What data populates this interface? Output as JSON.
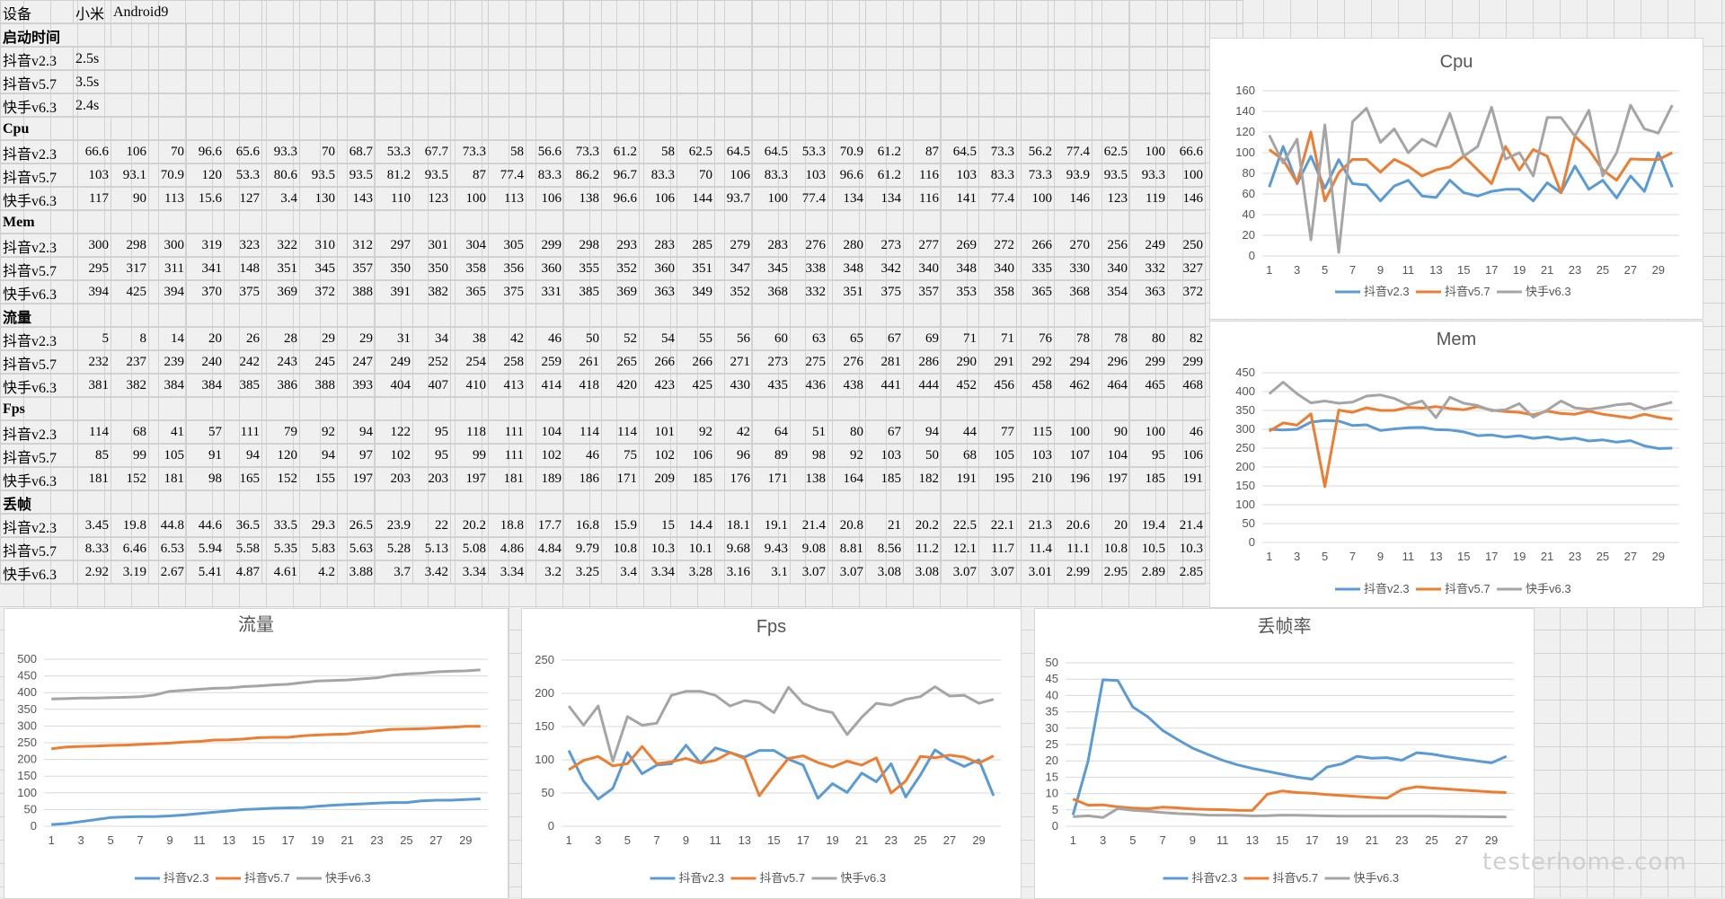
{
  "sheet": {
    "device_label": "设备",
    "device_brand": "小米",
    "device_os": "Android9",
    "startup": {
      "title": "启动时间",
      "rows": [
        {
          "label": "抖音v2.3",
          "value": "2.5s"
        },
        {
          "label": "抖音v5.7",
          "value": "3.5s"
        },
        {
          "label": "快手v6.3",
          "value": "2.4s"
        }
      ]
    },
    "sections": [
      {
        "title": "Cpu",
        "rows": [
          {
            "label": "抖音v2.3",
            "values": [
              "66.6",
              "106",
              "70",
              "96.6",
              "65.6",
              "93.3",
              "70",
              "68.7",
              "53.3",
              "67.7",
              "73.3",
              "58",
              "56.6",
              "73.3",
              "61.2",
              "58",
              "62.5",
              "64.5",
              "64.5",
              "53.3",
              "70.9",
              "61.2",
              "87",
              "64.5",
              "73.3",
              "56.2",
              "77.4",
              "62.5",
              "100",
              "66.6"
            ]
          },
          {
            "label": "抖音v5.7",
            "values": [
              "103",
              "93.1",
              "70.9",
              "120",
              "53.3",
              "80.6",
              "93.5",
              "93.5",
              "81.2",
              "93.5",
              "87",
              "77.4",
              "83.3",
              "86.2",
              "96.7",
              "83.3",
              "70",
              "106",
              "83.3",
              "103",
              "96.6",
              "61.2",
              "116",
              "103",
              "83.3",
              "73.3",
              "93.9",
              "93.5",
              "93.3",
              "100"
            ]
          },
          {
            "label": "快手v6.3",
            "values": [
              "117",
              "90",
              "113",
              "15.6",
              "127",
              "3.4",
              "130",
              "143",
              "110",
              "123",
              "100",
              "113",
              "106",
              "138",
              "96.6",
              "106",
              "144",
              "93.7",
              "100",
              "77.4",
              "134",
              "134",
              "116",
              "141",
              "77.4",
              "100",
              "146",
              "123",
              "119",
              "146"
            ]
          }
        ]
      },
      {
        "title": "Mem",
        "rows": [
          {
            "label": "抖音v2.3",
            "values": [
              "300",
              "298",
              "300",
              "319",
              "323",
              "322",
              "310",
              "312",
              "297",
              "301",
              "304",
              "305",
              "299",
              "298",
              "293",
              "283",
              "285",
              "279",
              "283",
              "276",
              "280",
              "273",
              "277",
              "269",
              "272",
              "266",
              "270",
              "256",
              "249",
              "250"
            ]
          },
          {
            "label": "抖音v5.7",
            "values": [
              "295",
              "317",
              "311",
              "341",
              "148",
              "351",
              "345",
              "357",
              "350",
              "350",
              "358",
              "356",
              "360",
              "355",
              "352",
              "360",
              "351",
              "347",
              "345",
              "338",
              "348",
              "342",
              "340",
              "348",
              "340",
              "335",
              "330",
              "340",
              "332",
              "327"
            ]
          },
          {
            "label": "快手v6.3",
            "values": [
              "394",
              "425",
              "394",
              "370",
              "375",
              "369",
              "372",
              "388",
              "391",
              "382",
              "365",
              "375",
              "331",
              "385",
              "369",
              "363",
              "349",
              "352",
              "368",
              "332",
              "351",
              "375",
              "357",
              "353",
              "358",
              "365",
              "368",
              "354",
              "363",
              "372"
            ]
          }
        ]
      },
      {
        "title": "流量",
        "rows": [
          {
            "label": "抖音v2.3",
            "values": [
              "5",
              "8",
              "14",
              "20",
              "26",
              "28",
              "29",
              "29",
              "31",
              "34",
              "38",
              "42",
              "46",
              "50",
              "52",
              "54",
              "55",
              "56",
              "60",
              "63",
              "65",
              "67",
              "69",
              "71",
              "71",
              "76",
              "78",
              "78",
              "80",
              "82"
            ]
          },
          {
            "label": "抖音v5.7",
            "values": [
              "232",
              "237",
              "239",
              "240",
              "242",
              "243",
              "245",
              "247",
              "249",
              "252",
              "254",
              "258",
              "259",
              "261",
              "265",
              "266",
              "266",
              "271",
              "273",
              "275",
              "276",
              "281",
              "286",
              "290",
              "291",
              "292",
              "294",
              "296",
              "299",
              "299"
            ]
          },
          {
            "label": "快手v6.3",
            "values": [
              "381",
              "382",
              "384",
              "384",
              "385",
              "386",
              "388",
              "393",
              "404",
              "407",
              "410",
              "413",
              "414",
              "418",
              "420",
              "423",
              "425",
              "430",
              "435",
              "436",
              "438",
              "441",
              "444",
              "452",
              "456",
              "458",
              "462",
              "464",
              "465",
              "468"
            ]
          }
        ]
      },
      {
        "title": "Fps",
        "rows": [
          {
            "label": "抖音v2.3",
            "values": [
              "114",
              "68",
              "41",
              "57",
              "111",
              "79",
              "92",
              "94",
              "122",
              "95",
              "118",
              "111",
              "104",
              "114",
              "114",
              "101",
              "92",
              "42",
              "64",
              "51",
              "80",
              "67",
              "94",
              "44",
              "77",
              "115",
              "100",
              "90",
              "100",
              "46"
            ]
          },
          {
            "label": "抖音v5.7",
            "values": [
              "85",
              "99",
              "105",
              "91",
              "94",
              "120",
              "94",
              "97",
              "102",
              "95",
              "99",
              "111",
              "102",
              "46",
              "75",
              "102",
              "106",
              "96",
              "89",
              "98",
              "92",
              "103",
              "50",
              "68",
              "105",
              "103",
              "107",
              "104",
              "95",
              "106"
            ]
          },
          {
            "label": "快手v6.3",
            "values": [
              "181",
              "152",
              "181",
              "98",
              "165",
              "152",
              "155",
              "197",
              "203",
              "203",
              "197",
              "181",
              "189",
              "186",
              "171",
              "209",
              "185",
              "176",
              "171",
              "138",
              "164",
              "185",
              "182",
              "191",
              "195",
              "210",
              "196",
              "197",
              "185",
              "191"
            ]
          }
        ]
      },
      {
        "title": "丢帧",
        "rows": [
          {
            "label": "抖音v2.3",
            "values": [
              "3.45",
              "19.8",
              "44.8",
              "44.6",
              "36.5",
              "33.5",
              "29.3",
              "26.5",
              "23.9",
              "22",
              "20.2",
              "18.8",
              "17.7",
              "16.8",
              "15.9",
              "15",
              "14.4",
              "18.1",
              "19.1",
              "21.4",
              "20.8",
              "21",
              "20.2",
              "22.5",
              "22.1",
              "21.3",
              "20.6",
              "20",
              "19.4",
              "21.4"
            ]
          },
          {
            "label": "抖音v5.7",
            "values": [
              "8.33",
              "6.46",
              "6.53",
              "5.94",
              "5.58",
              "5.35",
              "5.83",
              "5.63",
              "5.28",
              "5.13",
              "5.08",
              "4.86",
              "4.84",
              "9.79",
              "10.8",
              "10.3",
              "10.1",
              "9.68",
              "9.43",
              "9.08",
              "8.81",
              "8.56",
              "11.2",
              "12.1",
              "11.7",
              "11.4",
              "11.1",
              "10.8",
              "10.5",
              "10.3"
            ]
          },
          {
            "label": "快手v6.3",
            "values": [
              "2.92",
              "3.19",
              "2.67",
              "5.41",
              "4.87",
              "4.61",
              "4.2",
              "3.88",
              "3.7",
              "3.42",
              "3.34",
              "3.34",
              "3.2",
              "3.25",
              "3.4",
              "3.34",
              "3.28",
              "3.16",
              "3.1",
              "3.07",
              "3.07",
              "3.08",
              "3.08",
              "3.07",
              "3.07",
              "3.01",
              "2.99",
              "2.95",
              "2.89",
              "2.85"
            ]
          }
        ]
      }
    ]
  },
  "colors": {
    "s1": "#5b9bd5",
    "s2": "#ed7d31",
    "s3": "#a5a5a5"
  },
  "chart_data": [
    {
      "type": "line",
      "title": "Cpu",
      "source": 0,
      "ylim": [
        0,
        160
      ],
      "yticks": [
        0,
        20,
        40,
        60,
        80,
        100,
        120,
        140,
        160
      ],
      "xticks": [
        "1",
        "3",
        "5",
        "7",
        "9",
        "11",
        "13",
        "15",
        "17",
        "19",
        "21",
        "23",
        "25",
        "27",
        "29"
      ],
      "series": [
        {
          "name": "抖音v2.3"
        },
        {
          "name": "抖音v5.7"
        },
        {
          "name": "快手v6.3"
        }
      ],
      "legend": "bottom"
    },
    {
      "type": "line",
      "title": "Mem",
      "source": 1,
      "ylim": [
        0,
        450
      ],
      "yticks": [
        0,
        50,
        100,
        150,
        200,
        250,
        300,
        350,
        400,
        450
      ],
      "xticks": [
        "1",
        "3",
        "5",
        "7",
        "9",
        "11",
        "13",
        "15",
        "17",
        "19",
        "21",
        "23",
        "25",
        "27",
        "29"
      ],
      "series": [
        {
          "name": "抖音v2.3"
        },
        {
          "name": "抖音v5.7"
        },
        {
          "name": "快手v6.3"
        }
      ],
      "legend": "bottom"
    },
    {
      "type": "line",
      "title": "流量",
      "source": 2,
      "ylim": [
        0,
        500
      ],
      "yticks": [
        0,
        50,
        100,
        150,
        200,
        250,
        300,
        350,
        400,
        450,
        500
      ],
      "xticks": [
        "1",
        "3",
        "5",
        "7",
        "9",
        "11",
        "13",
        "15",
        "17",
        "19",
        "21",
        "23",
        "25",
        "27",
        "29"
      ],
      "series": [
        {
          "name": "抖音v2.3"
        },
        {
          "name": "抖音v5.7"
        },
        {
          "name": "快手v6.3"
        }
      ],
      "legend": "bottom"
    },
    {
      "type": "line",
      "title": "Fps",
      "source": 3,
      "ylim": [
        0,
        250
      ],
      "yticks": [
        0,
        50,
        100,
        150,
        200,
        250
      ],
      "xticks": [
        "1",
        "3",
        "5",
        "7",
        "9",
        "11",
        "13",
        "15",
        "17",
        "19",
        "21",
        "23",
        "25",
        "27",
        "29"
      ],
      "series": [
        {
          "name": "抖音v2.3"
        },
        {
          "name": "抖音v5.7"
        },
        {
          "name": "快手v6.3"
        }
      ],
      "legend": "bottom"
    },
    {
      "type": "line",
      "title": "丢帧率",
      "source": 4,
      "ylim": [
        0,
        50
      ],
      "yticks": [
        0,
        5,
        10,
        15,
        20,
        25,
        30,
        35,
        40,
        45,
        50
      ],
      "xticks": [
        "1",
        "3",
        "5",
        "7",
        "9",
        "11",
        "13",
        "15",
        "17",
        "19",
        "21",
        "23",
        "25",
        "27",
        "29"
      ],
      "series": [
        {
          "name": "抖音v2.3"
        },
        {
          "name": "抖音v5.7"
        },
        {
          "name": "快手v6.3"
        }
      ],
      "legend": "bottom"
    }
  ],
  "watermark": "testerhome.com"
}
